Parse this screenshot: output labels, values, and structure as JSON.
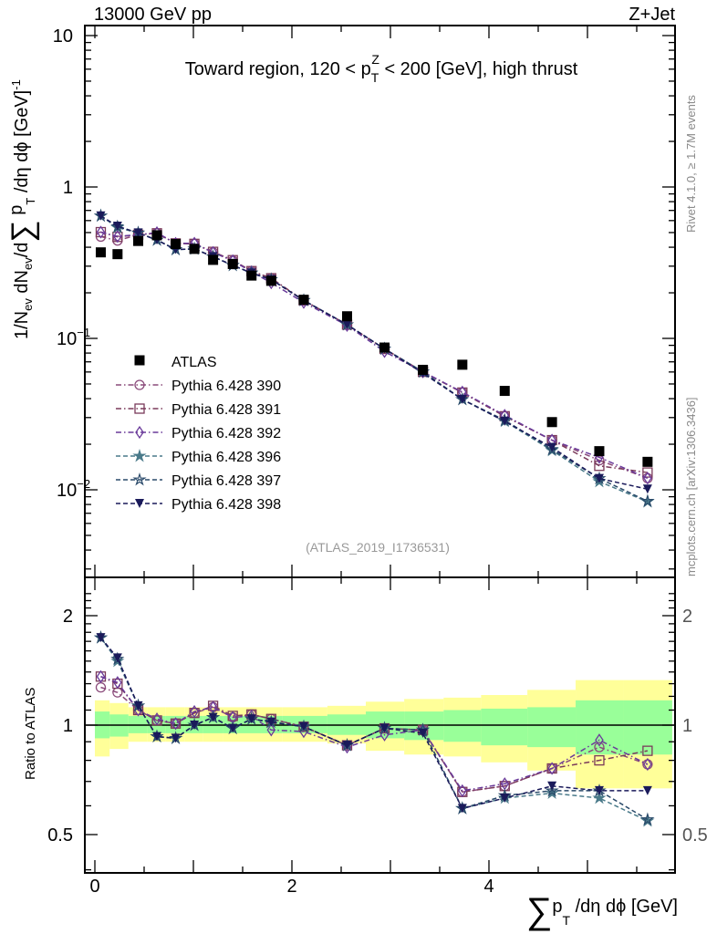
{
  "header": {
    "left": "13000 GeV pp",
    "right": "Z+Jet"
  },
  "side": {
    "rivet": "Rivet 4.1.0, ≥ 1.7M events",
    "mcplots": "mcplots.cern.ch [arXiv:1306.3436]"
  },
  "chart_data": {
    "type": "scatter",
    "title": {
      "pre": "Toward region, 120 < p",
      "sub": "T",
      "sup": "Z",
      "post": " < 200 [GeV], high thrust"
    },
    "watermark": "(ATLAS_2019_I1736531)",
    "xlabel": {
      "sum": "∑",
      "p": "p",
      "sub": "T",
      "post": " /dη dϕ [GeV]"
    },
    "ylabel": {
      "a": "1/N",
      "a_sub": "ev",
      "b": " dN",
      "b_sub": "ev",
      "c": "/d",
      "sum": "∑",
      "d": " p",
      "d_sub": "T",
      "e": " /dη dϕ  [GeV]",
      "e_sup": "-1"
    },
    "ratio_ylabel": "Ratio to ATLAS",
    "x_range": [
      -0.1,
      5.88
    ],
    "y_range_log": [
      0.0025,
      11
    ],
    "ratio_range_log": [
      0.4,
      2.3
    ],
    "x_ticks": [
      "0",
      "2",
      "4"
    ],
    "y_ticks": [
      {
        "base": "10",
        "exp": ""
      },
      {
        "base": "1",
        "exp": ""
      },
      {
        "base": "10",
        "exp": "−1"
      },
      {
        "base": "10",
        "exp": "−2"
      }
    ],
    "ratio_ticks": [
      "2",
      "1",
      "0.5"
    ],
    "x": [
      0.06,
      0.23,
      0.44,
      0.63,
      0.82,
      1.01,
      1.2,
      1.4,
      1.59,
      1.79,
      2.12,
      2.56,
      2.94,
      3.33,
      3.73,
      4.16,
      4.64,
      5.12,
      5.61
    ],
    "bin_edges": [
      0,
      0.15,
      0.34,
      0.53,
      0.72,
      0.91,
      1.1,
      1.3,
      1.5,
      1.69,
      1.9,
      2.36,
      2.75,
      3.14,
      3.54,
      3.92,
      4.39,
      4.88,
      5.37,
      5.86
    ],
    "data": {
      "name": "ATLAS",
      "values": [
        0.37,
        0.36,
        0.44,
        0.48,
        0.42,
        0.39,
        0.33,
        0.31,
        0.26,
        0.24,
        0.18,
        0.14,
        0.087,
        0.062,
        0.067,
        0.045,
        0.028,
        0.018,
        0.0153
      ]
    },
    "band_stat": {
      "upper": [
        1.09,
        1.07,
        1.06,
        1.06,
        1.06,
        1.06,
        1.06,
        1.06,
        1.06,
        1.06,
        1.06,
        1.07,
        1.09,
        1.09,
        1.1,
        1.11,
        1.12,
        1.17,
        1.17
      ],
      "lower": [
        0.92,
        0.93,
        0.95,
        0.95,
        0.95,
        0.95,
        0.95,
        0.95,
        0.95,
        0.95,
        0.95,
        0.94,
        0.92,
        0.91,
        0.9,
        0.88,
        0.87,
        0.83,
        0.83
      ]
    },
    "band_total": {
      "upper": [
        1.17,
        1.15,
        1.12,
        1.12,
        1.12,
        1.12,
        1.12,
        1.12,
        1.12,
        1.12,
        1.12,
        1.13,
        1.16,
        1.18,
        1.19,
        1.21,
        1.25,
        1.33,
        1.33
      ],
      "lower": [
        0.82,
        0.86,
        0.9,
        0.9,
        0.9,
        0.9,
        0.9,
        0.9,
        0.9,
        0.9,
        0.9,
        0.89,
        0.85,
        0.83,
        0.82,
        0.79,
        0.75,
        0.67,
        0.67
      ]
    },
    "series": [
      {
        "name": "Pythia 6.428 390",
        "color": "#8a4a7a",
        "marker": "circle",
        "style": "dashdot",
        "ratio": [
          1.27,
          1.23,
          1.1,
          1.03,
          1.01,
          1.08,
          1.12,
          1.05,
          1.07,
          1.04,
          0.99,
          0.88,
          0.98,
          0.97,
          0.655,
          0.68,
          0.76,
          0.87,
          0.78
        ]
      },
      {
        "name": "Pythia 6.428 391",
        "color": "#7a3a5a",
        "marker": "square",
        "style": "dashdot",
        "ratio": [
          1.36,
          1.3,
          1.1,
          1.03,
          1.01,
          1.08,
          1.13,
          1.06,
          1.07,
          1.04,
          0.99,
          0.88,
          0.98,
          0.97,
          0.655,
          0.68,
          0.76,
          0.8,
          0.85
        ]
      },
      {
        "name": "Pythia 6.428 392",
        "color": "#6a3a9a",
        "marker": "diamond",
        "style": "dashdot",
        "ratio": [
          1.36,
          1.31,
          1.1,
          1.04,
          1.01,
          1.09,
          1.12,
          1.05,
          1.06,
          0.97,
          0.96,
          0.87,
          0.94,
          0.97,
          0.66,
          0.69,
          0.76,
          0.91,
          0.78
        ]
      },
      {
        "name": "Pythia 6.428 396",
        "color": "#4a7a8a",
        "marker": "star",
        "style": "dashed",
        "ratio": [
          1.74,
          1.5,
          1.13,
          0.93,
          0.92,
          1.0,
          1.05,
          0.98,
          1.04,
          1.02,
          0.99,
          0.88,
          0.98,
          0.97,
          0.59,
          0.63,
          0.65,
          0.63,
          0.545
        ]
      },
      {
        "name": "Pythia 6.428 397",
        "color": "#2a4a6a",
        "marker": "star-open",
        "style": "dashed",
        "ratio": [
          1.74,
          1.52,
          1.13,
          0.93,
          0.92,
          1.0,
          1.05,
          0.98,
          1.04,
          1.02,
          0.99,
          0.88,
          0.98,
          0.97,
          0.59,
          0.64,
          0.66,
          0.66,
          0.55
        ]
      },
      {
        "name": "Pythia 6.428 398",
        "color": "#1a1a5a",
        "marker": "triangle-down",
        "style": "dashed",
        "ratio": [
          1.74,
          1.53,
          1.13,
          0.93,
          0.92,
          1.0,
          1.05,
          0.98,
          1.04,
          1.02,
          0.99,
          0.88,
          0.98,
          0.95,
          0.59,
          0.63,
          0.68,
          0.66,
          0.66
        ]
      }
    ],
    "colors": {
      "band_stat": "#99ff99",
      "band_total": "#ffff99"
    }
  }
}
